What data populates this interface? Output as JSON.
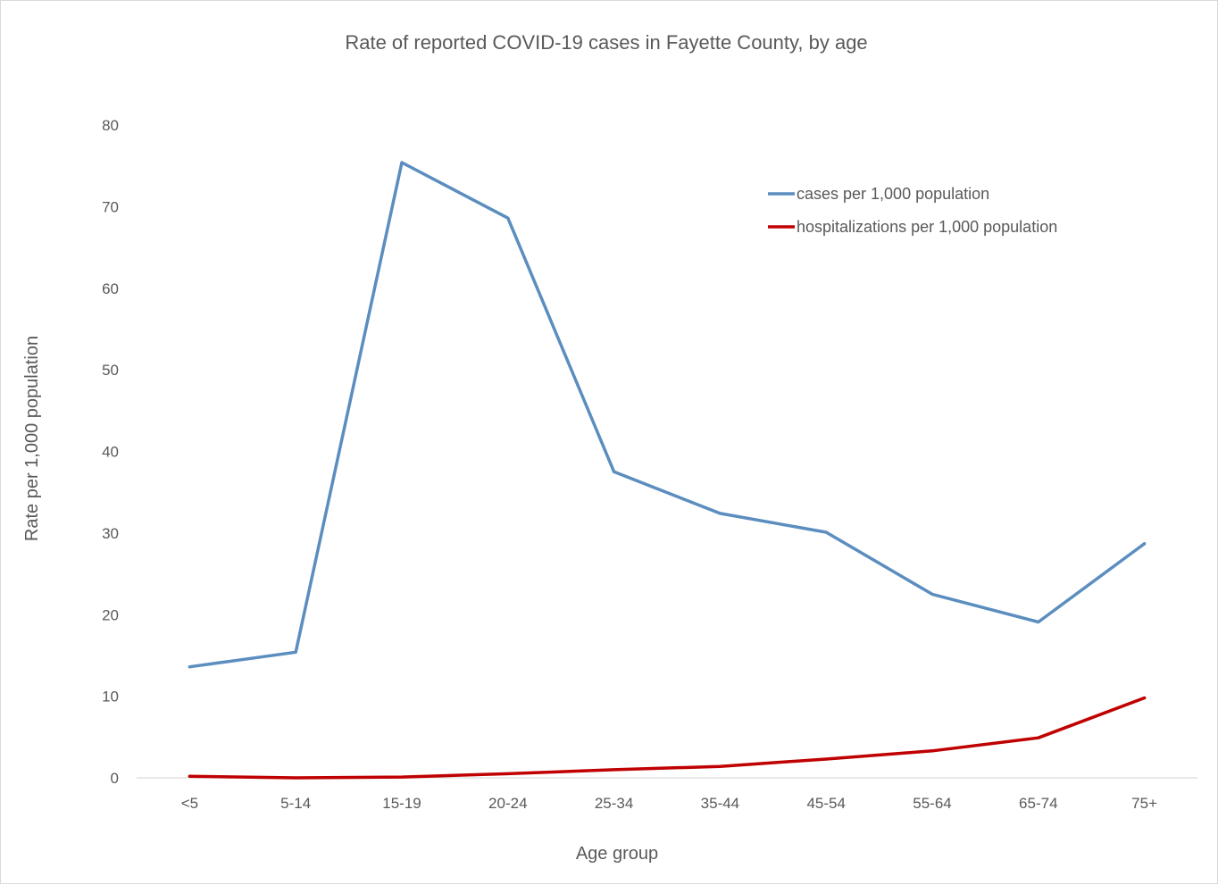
{
  "chart_data": {
    "type": "line",
    "title": "Rate of reported COVID-19 cases in Fayette County, by age",
    "xlabel": "Age group",
    "ylabel": "Rate per 1,000 population",
    "ylim": [
      0,
      80
    ],
    "yticks": [
      0,
      10,
      20,
      30,
      40,
      50,
      60,
      70,
      80
    ],
    "grid": false,
    "legend_position": "top-right",
    "categories": [
      "<5",
      "5-14",
      "15-19",
      "20-24",
      "25-34",
      "35-44",
      "45-54",
      "55-64",
      "65-74",
      "75+"
    ],
    "series": [
      {
        "name": "cases per 1,000 population",
        "color": "#5b8ebf",
        "values": [
          13.6,
          15.4,
          75.4,
          68.6,
          37.5,
          32.4,
          30.1,
          22.5,
          19.1,
          28.7
        ]
      },
      {
        "name": "hospitalizations per 1,000 population",
        "color": "#c00000",
        "values": [
          0.2,
          0.0,
          0.1,
          0.5,
          1.0,
          1.4,
          2.3,
          3.3,
          4.9,
          9.8
        ]
      }
    ]
  }
}
